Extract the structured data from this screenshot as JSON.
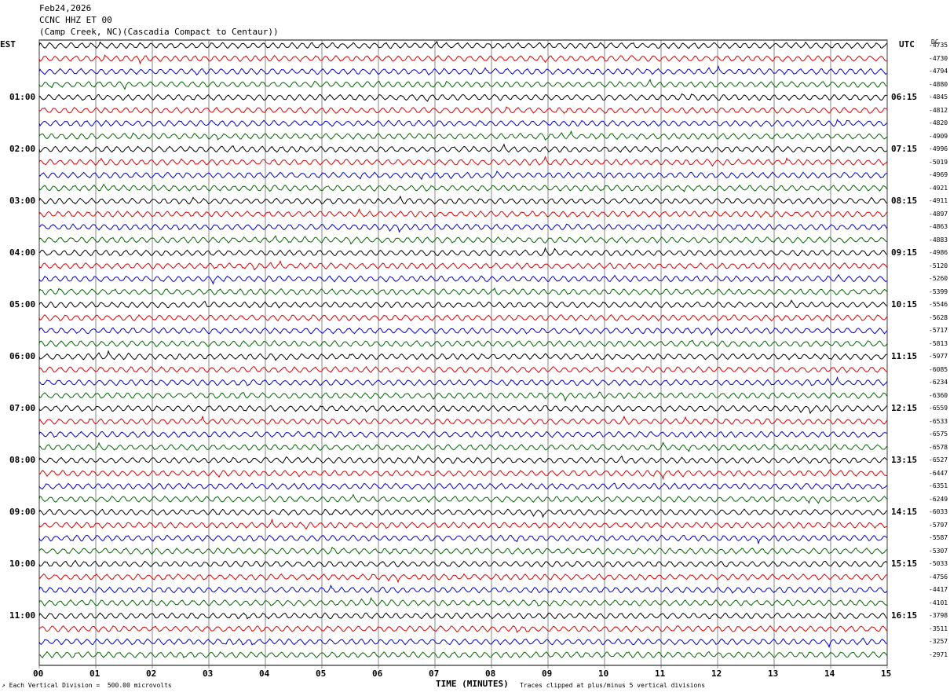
{
  "header": {
    "date": "Feb24,2026",
    "station": "CCNC HHZ ET 00",
    "location": "(Camp Creek, NC)(Cascadia Compact to Centaur))"
  },
  "left_tz": "EST",
  "right_tz": "UTC",
  "dc_label": "DC",
  "footer": {
    "scale_note": "Each Vertical Division =  500.00 microvolts",
    "xlabel": "TIME (MINUTES)",
    "clip_note": "Traces clipped at plus/minus 5 vertical divisions"
  },
  "colors": {
    "trace_cycle": [
      "#000000",
      "#dd0000",
      "#0000cc",
      "#006600"
    ],
    "grid": "#000000"
  },
  "chart_data": {
    "type": "line",
    "title": "",
    "x_ticks": [
      "00",
      "01",
      "02",
      "03",
      "04",
      "05",
      "06",
      "07",
      "08",
      "09",
      "10",
      "11",
      "12",
      "13",
      "14",
      "15"
    ],
    "xlim": [
      0,
      15
    ],
    "trace_minutes": 15,
    "traces_per_hour": 4,
    "est_hour_labels": [
      "01:00",
      "02:00",
      "03:00",
      "04:00",
      "05:00",
      "06:00",
      "07:00",
      "08:00",
      "09:00",
      "10:00",
      "11:00"
    ],
    "utc_hour_labels": [
      "06:15",
      "07:15",
      "08:15",
      "09:15",
      "10:15",
      "11:15",
      "12:15",
      "13:15",
      "14:15",
      "15:15",
      "16:15"
    ],
    "dc_offsets": [
      -4735,
      -4730,
      -4794,
      -4880,
      -4845,
      -4812,
      -4820,
      -4909,
      -4996,
      -5019,
      -4969,
      -4921,
      -4911,
      -4897,
      -4863,
      -4883,
      -4986,
      -5120,
      -5260,
      -5399,
      -5546,
      -5628,
      -5717,
      -5813,
      -5977,
      -6085,
      -6234,
      -6360,
      -6559,
      -6533,
      -6575,
      -6578,
      -6527,
      -6447,
      -6351,
      -6249,
      -6033,
      -5797,
      -5587,
      -5307,
      -5033,
      -4756,
      -4417,
      -4101,
      -3798,
      -3511,
      -3257,
      -2971
    ]
  }
}
